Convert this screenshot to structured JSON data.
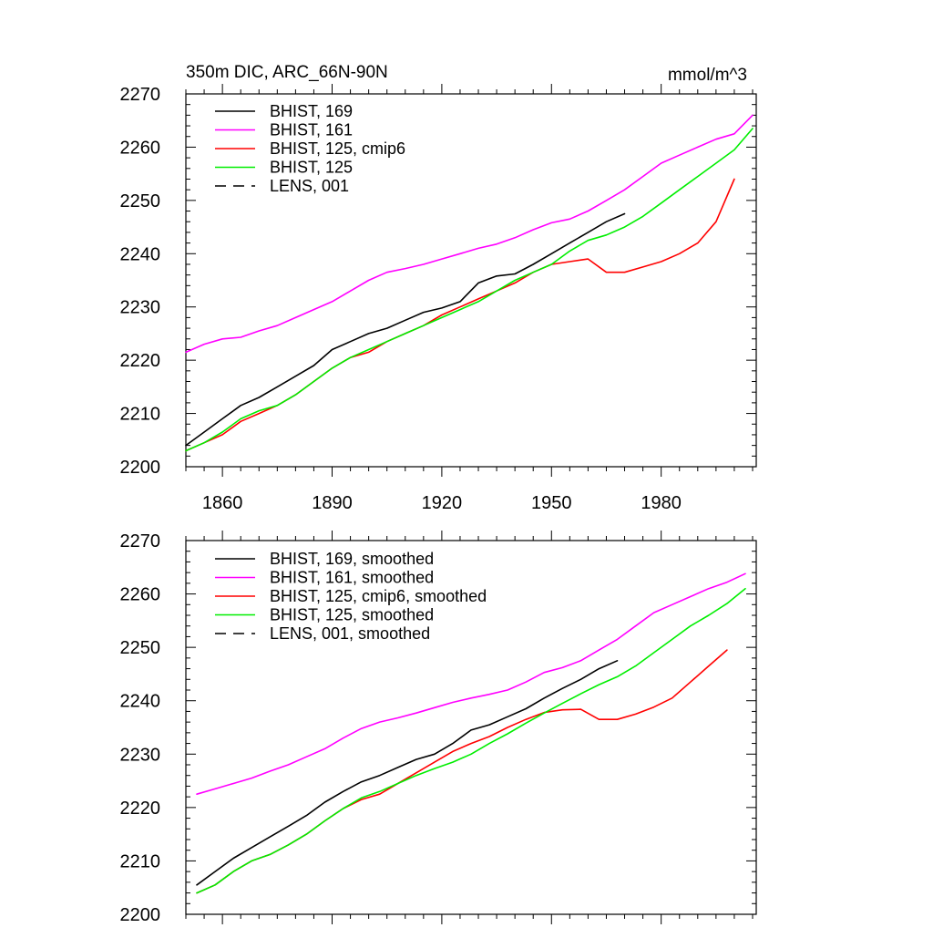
{
  "units_label": "mmol/m^3",
  "chart_data": [
    {
      "type": "line",
      "title": "350m DIC, ARC_66N-90N",
      "xlabel": "",
      "ylabel": "",
      "xlim": [
        1850,
        2006
      ],
      "ylim": [
        2200,
        2270
      ],
      "x_ticks": [
        1860,
        1890,
        1920,
        1950,
        1980
      ],
      "y_ticks": [
        2200,
        2210,
        2220,
        2230,
        2240,
        2250,
        2260,
        2270
      ],
      "grid": false,
      "legend_position": "top-left",
      "series": [
        {
          "name": "BHIST, 169",
          "color": "#000000",
          "dash": "solid",
          "x": [
            1850,
            1855,
            1860,
            1865,
            1870,
            1875,
            1880,
            1885,
            1890,
            1895,
            1900,
            1905,
            1910,
            1915,
            1920,
            1925,
            1930,
            1935,
            1940,
            1945,
            1950,
            1955,
            1960,
            1965,
            1970
          ],
          "y": [
            2204,
            2206.5,
            2209,
            2211.5,
            2213,
            2215,
            2217,
            2219,
            2222,
            2223.5,
            2225,
            2226,
            2227.5,
            2229,
            2229.8,
            2231,
            2234.5,
            2235.8,
            2236.2,
            2238,
            2240,
            2242,
            2244,
            2246,
            2247.5
          ]
        },
        {
          "name": "BHIST, 161",
          "color": "#ff00ff",
          "dash": "solid",
          "x": [
            1850,
            1855,
            1860,
            1865,
            1870,
            1875,
            1880,
            1885,
            1890,
            1895,
            1900,
            1905,
            1910,
            1915,
            1920,
            1925,
            1930,
            1935,
            1940,
            1945,
            1950,
            1955,
            1960,
            1965,
            1970,
            1975,
            1980,
            1985,
            1990,
            1995,
            2000,
            2005
          ],
          "y": [
            2221.5,
            2223,
            2224,
            2224.3,
            2225.5,
            2226.5,
            2228,
            2229.5,
            2231,
            2233,
            2235,
            2236.5,
            2237.2,
            2238,
            2239,
            2240,
            2241,
            2241.8,
            2243,
            2244.5,
            2245.8,
            2246.5,
            2248,
            2250,
            2252,
            2254.5,
            2257,
            2258.5,
            2260,
            2261.5,
            2262.5,
            2266
          ]
        },
        {
          "name": "BHIST, 125, cmip6",
          "color": "#ff0000",
          "dash": "solid",
          "x": [
            1850,
            1855,
            1860,
            1865,
            1870,
            1875,
            1880,
            1885,
            1890,
            1895,
            1900,
            1905,
            1910,
            1915,
            1920,
            1925,
            1930,
            1935,
            1940,
            1945,
            1950,
            1955,
            1960,
            1965,
            1970,
            1975,
            1980,
            1985,
            1990,
            1995,
            2000
          ],
          "y": [
            2203,
            2204.5,
            2206,
            2208.5,
            2210,
            2211.5,
            2213.5,
            2216,
            2218.5,
            2220.5,
            2221.5,
            2223.5,
            2225,
            2226.5,
            2228.5,
            2230,
            2231.5,
            2233,
            2234.5,
            2236.5,
            2238,
            2238.5,
            2239,
            2236.5,
            2236.5,
            2237.5,
            2238.5,
            2240,
            2242,
            2246,
            2254
          ]
        },
        {
          "name": "BHIST, 125",
          "color": "#00ee00",
          "dash": "solid",
          "x": [
            1850,
            1855,
            1860,
            1865,
            1870,
            1875,
            1880,
            1885,
            1890,
            1895,
            1900,
            1905,
            1910,
            1915,
            1920,
            1925,
            1930,
            1935,
            1940,
            1945,
            1950,
            1955,
            1960,
            1965,
            1970,
            1975,
            1980,
            1985,
            1990,
            1995,
            2000,
            2005
          ],
          "y": [
            2203,
            2204.5,
            2206.5,
            2209,
            2210.5,
            2211.5,
            2213.5,
            2216,
            2218.5,
            2220.5,
            2222,
            2223.5,
            2225,
            2226.5,
            2228,
            2229.5,
            2231,
            2233,
            2235,
            2236.5,
            2238,
            2240.5,
            2242.5,
            2243.5,
            2245,
            2247,
            2249.5,
            2252,
            2254.5,
            2257,
            2259.5,
            2263.5
          ]
        },
        {
          "name": "LENS, 001",
          "color": "#000000",
          "dash": "dashed",
          "x": [],
          "y": []
        }
      ]
    },
    {
      "type": "line",
      "title": "",
      "xlabel": "",
      "ylabel": "",
      "xlim": [
        1850,
        2006
      ],
      "ylim": [
        2200,
        2270
      ],
      "x_ticks": [],
      "y_ticks": [
        2200,
        2210,
        2220,
        2230,
        2240,
        2250,
        2260,
        2270
      ],
      "grid": false,
      "legend_position": "top-left",
      "series": [
        {
          "name": "BHIST, 169, smoothed",
          "color": "#000000",
          "dash": "solid",
          "x": [
            1853,
            1858,
            1863,
            1868,
            1873,
            1878,
            1883,
            1888,
            1893,
            1898,
            1903,
            1908,
            1913,
            1918,
            1923,
            1928,
            1933,
            1938,
            1943,
            1948,
            1953,
            1958,
            1963,
            1968
          ],
          "y": [
            2205.5,
            2208,
            2210.5,
            2212.5,
            2214.5,
            2216.5,
            2218.5,
            2221,
            2223,
            2224.8,
            2226,
            2227.5,
            2229,
            2230,
            2232,
            2234.5,
            2235.5,
            2237,
            2238.5,
            2240.5,
            2242.3,
            2244,
            2246,
            2247.5
          ]
        },
        {
          "name": "BHIST, 161, smoothed",
          "color": "#ff00ff",
          "dash": "solid",
          "x": [
            1853,
            1858,
            1863,
            1868,
            1873,
            1878,
            1883,
            1888,
            1893,
            1898,
            1903,
            1908,
            1913,
            1918,
            1923,
            1928,
            1933,
            1938,
            1943,
            1948,
            1953,
            1958,
            1963,
            1968,
            1973,
            1978,
            1983,
            1988,
            1993,
            1998,
            2003
          ],
          "y": [
            2222.5,
            2223.5,
            2224.5,
            2225.5,
            2226.8,
            2228,
            2229.5,
            2231,
            2233,
            2234.8,
            2236,
            2236.8,
            2237.7,
            2238.7,
            2239.7,
            2240.5,
            2241.2,
            2242,
            2243.5,
            2245.3,
            2246.2,
            2247.5,
            2249.5,
            2251.5,
            2254,
            2256.5,
            2258,
            2259.5,
            2261,
            2262.2,
            2263.8
          ]
        },
        {
          "name": "BHIST, 125, cmip6, smoothed",
          "color": "#ff0000",
          "dash": "solid",
          "x": [
            1853,
            1858,
            1863,
            1868,
            1873,
            1878,
            1883,
            1888,
            1893,
            1898,
            1903,
            1908,
            1913,
            1918,
            1923,
            1928,
            1933,
            1938,
            1943,
            1948,
            1953,
            1958,
            1963,
            1968,
            1973,
            1978,
            1983,
            1988,
            1993,
            1998
          ],
          "y": [
            2204,
            2205.5,
            2208,
            2210,
            2211.2,
            2213,
            2215,
            2217.5,
            2219.8,
            2221.5,
            2222.5,
            2224.5,
            2226.5,
            2228.5,
            2230.5,
            2232,
            2233.3,
            2235,
            2236.5,
            2237.8,
            2238.3,
            2238.4,
            2236.5,
            2236.5,
            2237.5,
            2238.8,
            2240.5,
            2243.5,
            2246.5,
            2249.5
          ]
        },
        {
          "name": "BHIST, 125, smoothed",
          "color": "#00ee00",
          "dash": "solid",
          "x": [
            1853,
            1858,
            1863,
            1868,
            1873,
            1878,
            1883,
            1888,
            1893,
            1898,
            1903,
            1908,
            1913,
            1918,
            1923,
            1928,
            1933,
            1938,
            1943,
            1948,
            1953,
            1958,
            1963,
            1968,
            1973,
            1978,
            1983,
            1988,
            1993,
            1998,
            2003
          ],
          "y": [
            2204,
            2205.5,
            2208,
            2210,
            2211.2,
            2213,
            2215,
            2217.5,
            2219.8,
            2221.8,
            2223,
            2224.5,
            2226,
            2227.3,
            2228.5,
            2230,
            2232,
            2233.8,
            2235.8,
            2237.7,
            2239.5,
            2241.3,
            2243,
            2244.5,
            2246.5,
            2249,
            2251.5,
            2254,
            2256,
            2258.2,
            2261
          ]
        },
        {
          "name": "LENS, 001, smoothed",
          "color": "#000000",
          "dash": "dashed",
          "x": [],
          "y": []
        }
      ]
    }
  ]
}
